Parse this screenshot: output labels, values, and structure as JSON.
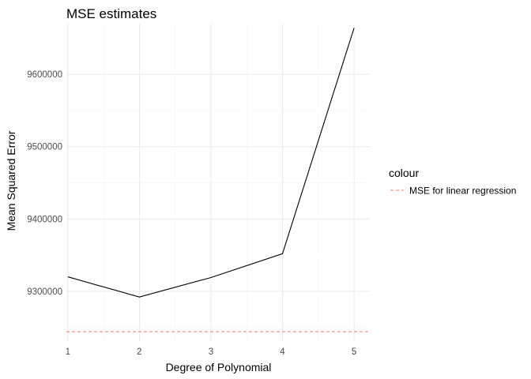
{
  "chart_data": {
    "type": "line",
    "title": "MSE estimates",
    "xlabel": "Degree of Polynomial",
    "ylabel": "Mean Squared Error",
    "x": [
      1,
      2,
      3,
      4,
      5
    ],
    "x_ticks": [
      "1",
      "2",
      "3",
      "4",
      "5"
    ],
    "y_ticks": [
      9300000,
      9400000,
      9500000,
      9600000
    ],
    "y_tick_labels": [
      "9300000",
      "9400000",
      "9500000",
      "9600000"
    ],
    "xlim": [
      0.98,
      5.22
    ],
    "ylim": [
      9230000,
      9670000
    ],
    "series": [
      {
        "values": [
          9320000,
          9292000,
          9319000,
          9352000,
          9664000
        ],
        "color": "#000000"
      }
    ],
    "reference_line": {
      "name": "MSE for linear regression",
      "value": 9244000,
      "color": "#f8766d",
      "style": "dashed"
    },
    "legend": {
      "title": "colour",
      "position": "right"
    },
    "grid": true
  }
}
